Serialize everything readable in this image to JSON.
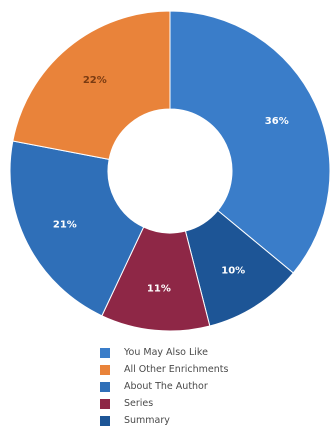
{
  "chart_data": {
    "type": "pie",
    "donut": true,
    "slices": [
      {
        "name": "You May Also Like",
        "value": 36,
        "label": "36%",
        "color": "#3a7dc9",
        "label_color": "#ffffff"
      },
      {
        "name": "Summary",
        "value": 10,
        "label": "10%",
        "color": "#1d5596",
        "label_color": "#ffffff"
      },
      {
        "name": "Series",
        "value": 11,
        "label": "11%",
        "color": "#8e2746",
        "label_color": "#ffffff"
      },
      {
        "name": "About The Author",
        "value": 21,
        "label": "21%",
        "color": "#2f6fb8",
        "label_color": "#ffffff"
      },
      {
        "name": "All Other Enrichments",
        "value": 22,
        "label": "22%",
        "color": "#e9833a",
        "label_color": "#7a3b12"
      }
    ],
    "legend": [
      {
        "label": "You May Also Like",
        "color": "#3a7dc9"
      },
      {
        "label": "All Other Enrichments",
        "color": "#e9833a"
      },
      {
        "label": "About The Author",
        "color": "#2f6fb8"
      },
      {
        "label": "Series",
        "color": "#8e2746"
      },
      {
        "label": "Summary",
        "color": "#1d5596"
      }
    ],
    "legend_position": "bottom"
  }
}
